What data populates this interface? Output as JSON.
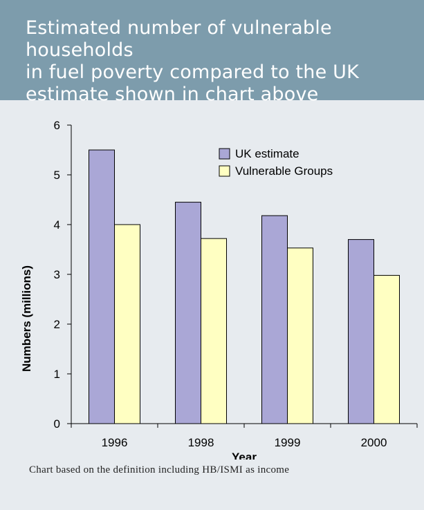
{
  "title_lines": [
    "Estimated number of vulnerable households",
    "in fuel poverty compared to the UK",
    "estimate shown in chart above"
  ],
  "caption": "Chart based on the definition including HB/ISMI as income",
  "colors": {
    "header_bg": "#7d9cac",
    "card_bg": "#e7ebef",
    "uk_estimate": "#aaa7d6",
    "vulnerable_groups": "#ffffc2"
  },
  "chart_data": {
    "type": "bar",
    "xlabel": "Year",
    "ylabel": "Numbers (millions)",
    "categories": [
      "1996",
      "1998",
      "1999",
      "2000"
    ],
    "ylim": [
      0,
      6
    ],
    "yticks": [
      0,
      1,
      2,
      3,
      4,
      5,
      6
    ],
    "grid": false,
    "legend_position": "top-right",
    "series": [
      {
        "name": "UK estimate",
        "color": "#aaa7d6",
        "values": [
          5.5,
          4.45,
          4.18,
          3.7
        ]
      },
      {
        "name": "Vulnerable Groups",
        "color": "#ffffc2",
        "values": [
          4.0,
          3.72,
          3.53,
          2.98
        ]
      }
    ]
  }
}
